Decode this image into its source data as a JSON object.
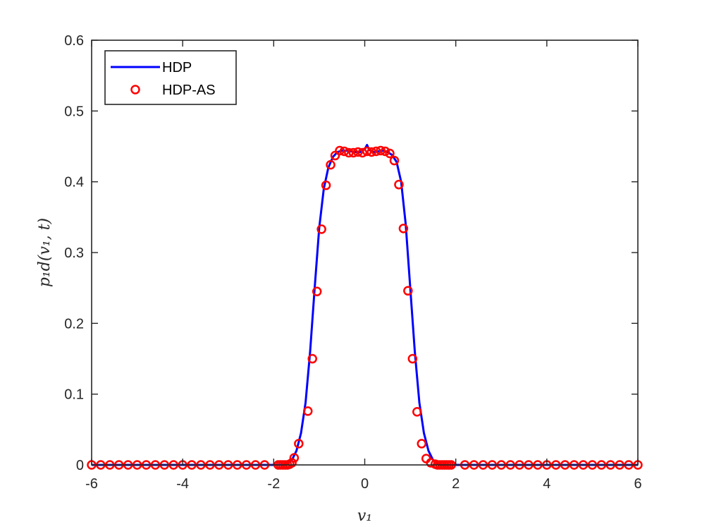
{
  "chart_data": {
    "type": "line",
    "xlabel": "v₁",
    "ylabel": "p₁d(v₁, t)",
    "xlim": [
      -6,
      6
    ],
    "ylim": [
      0,
      0.6
    ],
    "xticks": [
      -6,
      -4,
      -2,
      0,
      2,
      4,
      6
    ],
    "xtick_labels": [
      "-6",
      "-4",
      "-2",
      "0",
      "2",
      "4",
      "6"
    ],
    "yticks": [
      0,
      0.1,
      0.2,
      0.3,
      0.4,
      0.5,
      0.6
    ],
    "ytick_labels": [
      "0",
      "0.1",
      "0.2",
      "0.3",
      "0.4",
      "0.5",
      "0.6"
    ],
    "grid": false,
    "legend_position": "top-left",
    "series": [
      {
        "name": "HDP",
        "style": "line",
        "color": "#0000ff",
        "x": [
          -6,
          -2.0,
          -1.8,
          -1.7,
          -1.6,
          -1.5,
          -1.4,
          -1.3,
          -1.2,
          -1.1,
          -1.0,
          -0.9,
          -0.8,
          -0.7,
          -0.6,
          -0.5,
          -0.4,
          -0.3,
          -0.2,
          -0.1,
          0.0,
          0.05,
          0.1,
          0.2,
          0.3,
          0.4,
          0.5,
          0.6,
          0.7,
          0.8,
          0.9,
          1.0,
          1.1,
          1.2,
          1.3,
          1.4,
          1.5,
          1.6,
          1.7,
          1.8,
          2.0,
          6
        ],
        "y": [
          0,
          0,
          0.0003,
          0.002,
          0.007,
          0.02,
          0.045,
          0.088,
          0.16,
          0.25,
          0.335,
          0.39,
          0.42,
          0.435,
          0.442,
          0.444,
          0.444,
          0.443,
          0.442,
          0.442,
          0.446,
          0.452,
          0.445,
          0.442,
          0.443,
          0.444,
          0.442,
          0.438,
          0.428,
          0.4,
          0.34,
          0.25,
          0.16,
          0.088,
          0.045,
          0.02,
          0.007,
          0.002,
          0.0003,
          0,
          0,
          0
        ]
      },
      {
        "name": "HDP-AS",
        "style": "markers",
        "marker": "circle",
        "color": "#ff0000",
        "x": [
          -6,
          -5.8,
          -5.6,
          -5.4,
          -5.2,
          -5.0,
          -4.8,
          -4.6,
          -4.4,
          -4.2,
          -4.0,
          -3.8,
          -3.6,
          -3.4,
          -3.2,
          -3.0,
          -2.8,
          -2.6,
          -2.4,
          -2.2,
          -1.9,
          -1.85,
          -1.8,
          -1.75,
          -1.7,
          -1.65,
          -1.6,
          -1.55,
          -1.45,
          -1.25,
          -1.15,
          -1.05,
          -0.95,
          -0.85,
          -0.75,
          -0.65,
          -0.55,
          -0.45,
          -0.35,
          -0.25,
          -0.15,
          -0.05,
          0.05,
          0.15,
          0.25,
          0.35,
          0.45,
          0.55,
          0.65,
          0.75,
          0.85,
          0.95,
          1.05,
          1.15,
          1.25,
          1.35,
          1.45,
          1.55,
          1.6,
          1.65,
          1.7,
          1.75,
          1.8,
          1.85,
          1.9,
          2.2,
          2.4,
          2.6,
          2.8,
          3.0,
          3.2,
          3.4,
          3.6,
          3.8,
          4.0,
          4.2,
          4.4,
          4.6,
          4.8,
          5.0,
          5.2,
          5.4,
          5.6,
          5.8,
          6.0
        ],
        "y": [
          0,
          0,
          0,
          0,
          0,
          0,
          0,
          0,
          0,
          0,
          0,
          0,
          0,
          0,
          0,
          0,
          0,
          0,
          0,
          0,
          0,
          0,
          0,
          0,
          0,
          0.001,
          0.003,
          0.01,
          0.03,
          0.076,
          0.15,
          0.245,
          0.333,
          0.395,
          0.424,
          0.437,
          0.444,
          0.443,
          0.441,
          0.441,
          0.442,
          0.441,
          0.443,
          0.442,
          0.443,
          0.444,
          0.443,
          0.44,
          0.43,
          0.396,
          0.334,
          0.246,
          0.15,
          0.075,
          0.03,
          0.009,
          0.003,
          0.001,
          0,
          0,
          0,
          0,
          0,
          0,
          0,
          0,
          0,
          0,
          0,
          0,
          0,
          0,
          0,
          0,
          0,
          0,
          0,
          0,
          0,
          0,
          0,
          0,
          0,
          0,
          0
        ]
      }
    ]
  }
}
